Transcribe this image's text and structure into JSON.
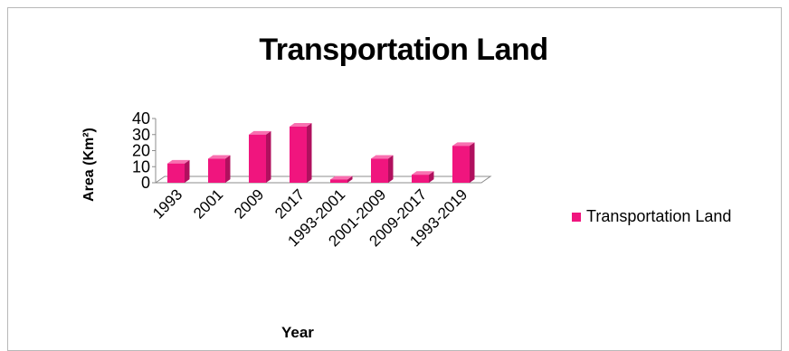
{
  "chart_data": {
    "type": "bar",
    "title": "Transportation Land",
    "xlabel": "Year",
    "ylabel": "Area (Km²)",
    "categories": [
      "1993",
      "2001",
      "2009",
      "2017",
      "1993-2001",
      "2001-2009",
      "2009-2017",
      "1993-2019"
    ],
    "series": [
      {
        "name": "Transportation Land",
        "values": [
          12,
          15,
          30,
          35,
          2,
          15,
          5,
          23
        ]
      }
    ],
    "ylim": [
      0,
      40
    ],
    "yticks": [
      0,
      10,
      20,
      30,
      40
    ],
    "legend_position": "right",
    "grid": false,
    "colors": {
      "bar_front": "#F0157E",
      "bar_side": "#B0105E",
      "bar_top": "#F870B0",
      "axis": "#8c8c8c"
    }
  }
}
